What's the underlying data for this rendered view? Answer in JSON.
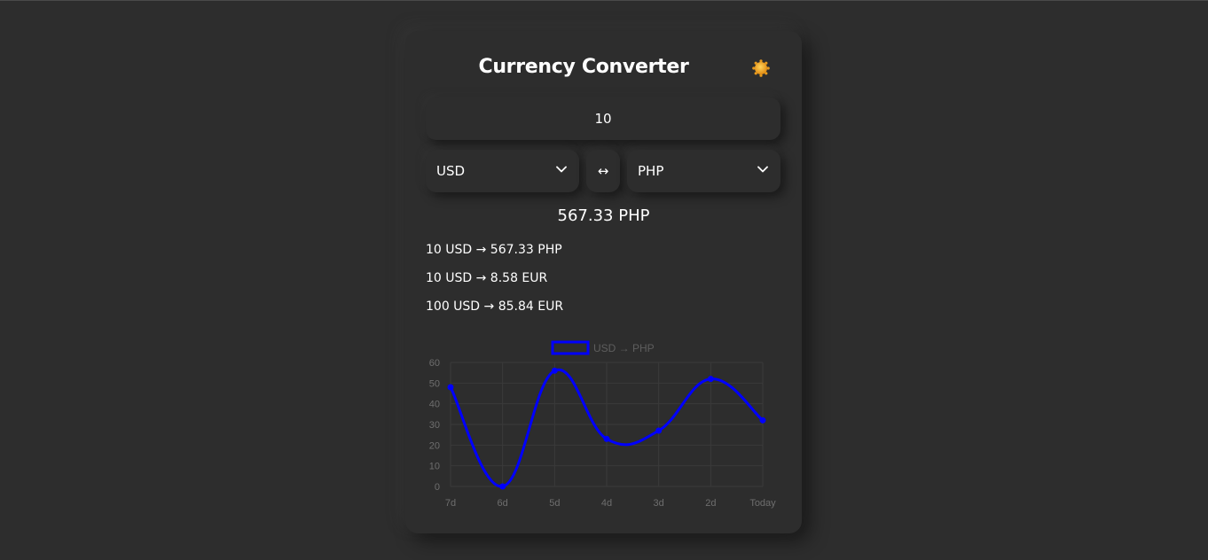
{
  "app": {
    "title": "Currency Converter",
    "theme_toggle_icon": "sun-icon"
  },
  "converter": {
    "amount": "10",
    "from_currency": "USD",
    "to_currency": "PHP",
    "swap_label": "↔",
    "result": "567.33 PHP"
  },
  "quick_conversions": [
    "10 USD → 567.33 PHP",
    "10 USD → 8.58 EUR",
    "100 USD → 85.84 EUR"
  ],
  "colors": {
    "background": "#2d2d2d",
    "series": "#0000ff",
    "sun": "#f5a623"
  },
  "chart_data": {
    "type": "line",
    "x": [
      "7d",
      "6d",
      "5d",
      "4d",
      "3d",
      "2d",
      "Today"
    ],
    "series": [
      {
        "name": "USD → PHP",
        "values": [
          48,
          0,
          56,
          23,
          27,
          52,
          32
        ]
      }
    ],
    "ylim": [
      0,
      60
    ],
    "yticks": [
      0,
      10,
      20,
      30,
      40,
      50,
      60
    ],
    "grid": true,
    "legend": "top-center"
  }
}
